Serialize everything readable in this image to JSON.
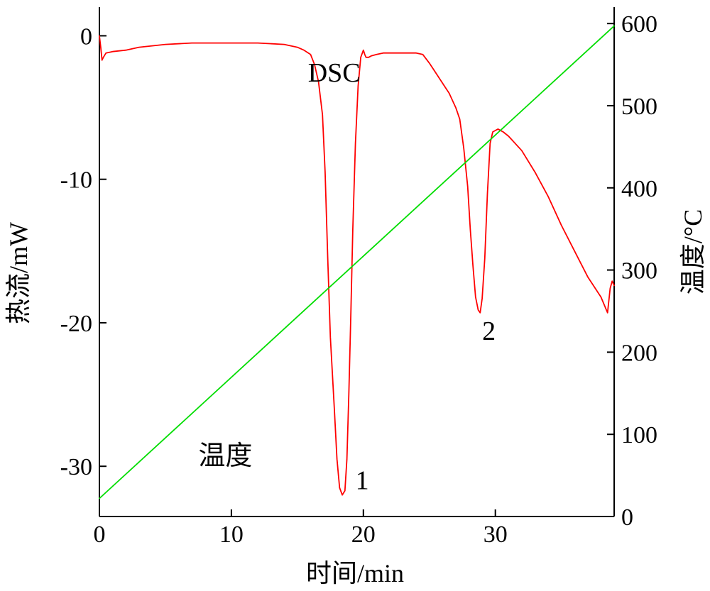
{
  "chart_data": {
    "type": "line",
    "xlabel": "时间/min",
    "ylabel_left": "热流/mW",
    "ylabel_right": "温度/°C",
    "xlim": [
      0,
      39
    ],
    "ylim_left": [
      -33.5,
      2
    ],
    "ylim_right": [
      0,
      620
    ],
    "x_ticks": [
      0,
      10,
      20,
      30
    ],
    "y_left_ticks": [
      0,
      -10,
      -20,
      -30
    ],
    "y_right_ticks": [
      0,
      100,
      200,
      300,
      400,
      500,
      600
    ],
    "grid": false,
    "series": [
      {
        "name": "DSC",
        "axis": "left",
        "color": "#ff0000",
        "x": [
          0,
          0.1,
          0.2,
          0.3,
          0.5,
          1,
          2,
          3,
          5,
          7,
          8,
          10,
          12,
          14,
          15,
          15.5,
          16,
          16.3,
          16.6,
          16.9,
          17.1,
          17.3,
          17.5,
          17.8,
          18.0,
          18.2,
          18.4,
          18.6,
          18.75,
          18.9,
          19.05,
          19.2,
          19.4,
          19.6,
          19.8,
          20.0,
          20.1,
          20.2,
          20.4,
          20.6,
          21.0,
          21.5,
          22,
          23,
          24,
          24.5,
          25,
          25.5,
          26,
          26.5,
          27,
          27.3,
          27.6,
          27.9,
          28.1,
          28.3,
          28.5,
          28.7,
          28.85,
          29.0,
          29.2,
          29.4,
          29.6,
          29.8,
          30.0,
          30.2,
          30.4,
          30.6,
          31,
          32,
          33,
          34,
          35,
          36,
          37,
          38,
          38.5,
          38.7,
          38.85,
          39
        ],
        "values": [
          0.0,
          -0.8,
          -1.7,
          -1.5,
          -1.2,
          -1.1,
          -1.0,
          -0.8,
          -0.6,
          -0.5,
          -0.5,
          -0.5,
          -0.5,
          -0.6,
          -0.8,
          -1.0,
          -1.3,
          -2.0,
          -3.2,
          -5.5,
          -9.5,
          -15.5,
          -21.0,
          -26.0,
          -29.5,
          -31.5,
          -32.0,
          -31.7,
          -29.5,
          -25.0,
          -19.5,
          -13.5,
          -7.5,
          -3.5,
          -1.5,
          -1.0,
          -1.3,
          -1.5,
          -1.5,
          -1.4,
          -1.3,
          -1.2,
          -1.2,
          -1.2,
          -1.2,
          -1.3,
          -1.9,
          -2.6,
          -3.3,
          -4.0,
          -5.0,
          -5.8,
          -7.8,
          -10.5,
          -13.5,
          -16.0,
          -18.2,
          -19.1,
          -19.3,
          -18.3,
          -15.5,
          -11.0,
          -7.5,
          -6.7,
          -6.6,
          -6.5,
          -6.6,
          -6.7,
          -7.0,
          -8.0,
          -9.5,
          -11.2,
          -13.2,
          -15.0,
          -16.8,
          -18.2,
          -19.3,
          -17.6,
          -17.1,
          -17.4
        ]
      },
      {
        "name": "温度",
        "axis": "right",
        "color": "#00dd00",
        "x": [
          0,
          39
        ],
        "values": [
          22,
          597
        ]
      }
    ],
    "annotations": [
      {
        "text": "DSC",
        "x": 15.8,
        "y": -3.2
      },
      {
        "text": "1",
        "x": 19.4,
        "y": -31.6
      },
      {
        "text": "2",
        "x": 29.0,
        "y": -21.2
      },
      {
        "text": "温度",
        "x": 7.5,
        "y": -29.9
      }
    ]
  }
}
